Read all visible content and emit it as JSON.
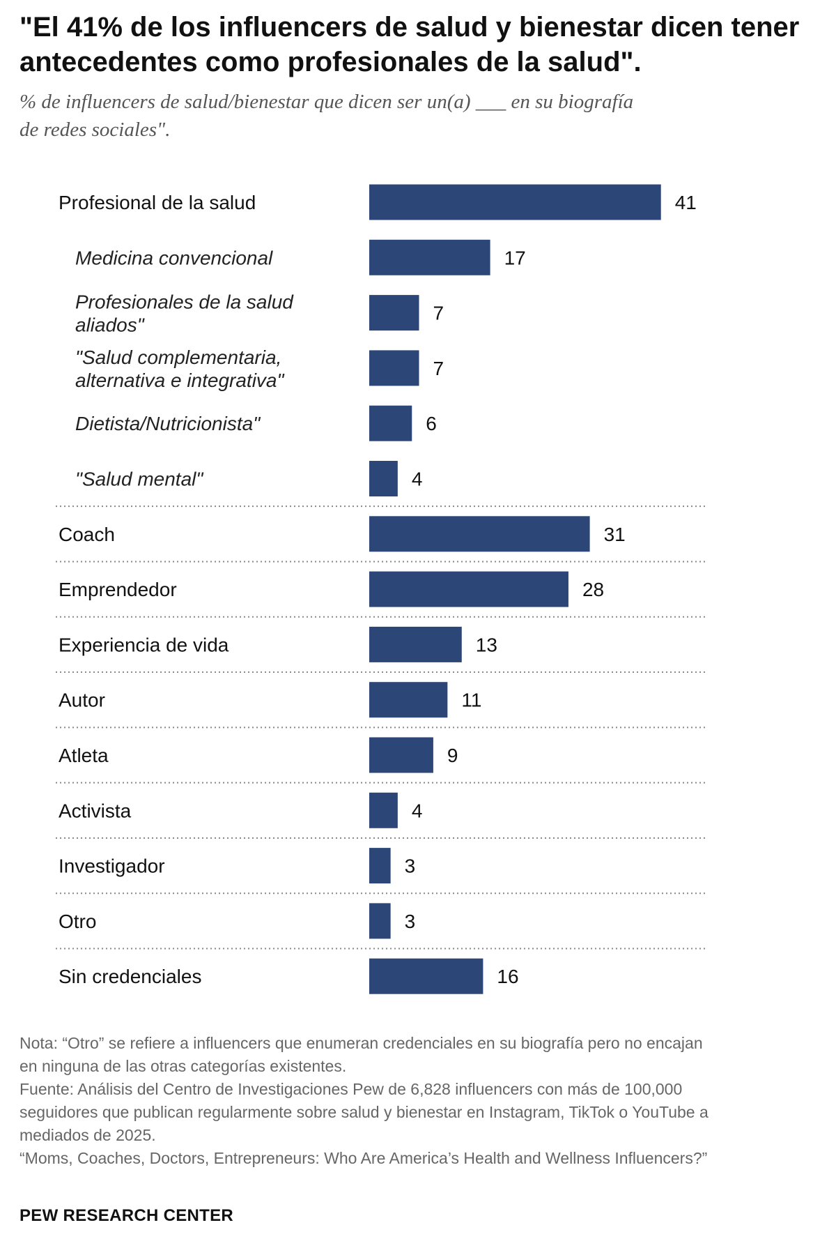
{
  "chart_data": {
    "type": "bar",
    "title": "\"El 41% de los influencers de salud y bienestar dicen tener antecedentes como profesionales de la salud\".",
    "subtitle": "% de influencers de salud/bienestar que dicen ser un(a) ___ en su biografía de redes sociales\".",
    "bar_color": "#2c4677",
    "xlim": [
      0,
      47
    ],
    "orientation": "horizontal",
    "grid": false,
    "categories": [
      {
        "label": [
          "Profesional de la salud"
        ],
        "value": 41,
        "sub": false
      },
      {
        "label": [
          "Medicina convencional"
        ],
        "value": 17,
        "sub": true
      },
      {
        "label": [
          "Profesionales de la salud",
          "aliados\""
        ],
        "value": 7,
        "sub": true
      },
      {
        "label": [
          "\"Salud complementaria,",
          "alternativa e integrativa\""
        ],
        "value": 7,
        "sub": true
      },
      {
        "label": [
          "Dietista/Nutricionista\""
        ],
        "value": 6,
        "sub": true
      },
      {
        "label": [
          "\"Salud mental\""
        ],
        "value": 4,
        "sub": true
      },
      {
        "label": [
          "Coach"
        ],
        "value": 31,
        "sub": false
      },
      {
        "label": [
          "Emprendedor"
        ],
        "value": 28,
        "sub": false
      },
      {
        "label": [
          "Experiencia de vida"
        ],
        "value": 13,
        "sub": false
      },
      {
        "label": [
          "Autor"
        ],
        "value": 11,
        "sub": false
      },
      {
        "label": [
          "Atleta"
        ],
        "value": 9,
        "sub": false
      },
      {
        "label": [
          "Activista"
        ],
        "value": 4,
        "sub": false
      },
      {
        "label": [
          "Investigador"
        ],
        "value": 3,
        "sub": false
      },
      {
        "label": [
          "Otro"
        ],
        "value": 3,
        "sub": false
      },
      {
        "label": [
          "Sin credenciales"
        ],
        "value": 16,
        "sub": false
      }
    ]
  },
  "footer": {
    "note": "Nota: “Otro” se refiere a influencers que enumeran credenciales en su biografía pero no encajan en ninguna de las otras categorías existentes.",
    "source": "Fuente: Análisis del Centro de Investigaciones Pew de 6,828 influencers con más de 100,000 seguidores que publican regularmente sobre salud y bienestar en Instagram, TikTok o YouTube a mediados de 2025.",
    "report": "“Moms, Coaches, Doctors, Entrepreneurs: Who Are America’s Health and Wellness Influencers?”",
    "brand": "PEW RESEARCH CENTER"
  }
}
